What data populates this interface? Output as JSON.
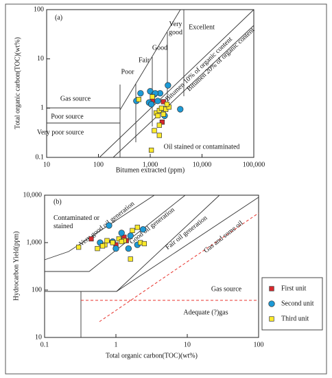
{
  "chart_data": [
    {
      "type": "scatter",
      "panel": "(a)",
      "xlabel": "Bitumen extracted (ppm)",
      "ylabel": "Total organic carbon(TOC)(wt%)",
      "log_x": true,
      "log_y": true,
      "xlim": [
        10,
        100000
      ],
      "ylim": [
        0.1,
        100
      ],
      "xticks": [
        10,
        100,
        {
          "value": 1000,
          "label": "1,000"
        },
        {
          "value": 10000,
          "label": "10,000"
        },
        {
          "value": 100000,
          "label": "100,000"
        }
      ],
      "yticks": [
        0.1,
        1,
        10,
        100
      ],
      "annotations": [
        "Gas source",
        "Poor source",
        "Very poor source",
        "Poor",
        "Fair",
        "Good",
        "Very good",
        "Excellent",
        "Bitumen 10% of organic content",
        "Bitumen 20% of organic content",
        "Oil stained or contaminated"
      ],
      "series": [
        {
          "name": "First unit",
          "color": "#d8282c",
          "marker": "square",
          "x": [
            1800,
            1700,
            1100
          ],
          "values": [
            1.35,
            0.52,
            1.4
          ]
        },
        {
          "name": "Second unit",
          "color": "#1d9ad6",
          "marker": "circle",
          "x": [
            540,
            650,
            1000,
            1200,
            1550,
            2200,
            950,
            1400,
            1900,
            1050,
            1250,
            3800
          ],
          "values": [
            1.4,
            2.0,
            2.2,
            1.9,
            2.0,
            2.9,
            1.3,
            1.4,
            0.7,
            1.2,
            2.0,
            0.95
          ]
        },
        {
          "name": "Third unit",
          "color": "#fcea2b",
          "marker": "square",
          "x": [
            600,
            1100,
            1300,
            1500,
            1400,
            1650,
            1800,
            2000,
            2300,
            1500,
            1200,
            1500,
            1050,
            2100
          ],
          "values": [
            1.5,
            1.7,
            0.8,
            0.9,
            0.7,
            1.0,
            0.75,
            0.95,
            1.05,
            0.45,
            0.35,
            0.28,
            0.14,
            1.2
          ]
        }
      ]
    },
    {
      "type": "scatter",
      "panel": "(b)",
      "xlabel": "Total organic carbon(TOC)(wt%)",
      "ylabel": "Hydrocarbon Yield(ppm)",
      "log_x": true,
      "log_y": true,
      "xlim": [
        0.1,
        100
      ],
      "ylim": [
        10,
        10000
      ],
      "xticks": [
        0.1,
        1,
        10,
        100
      ],
      "yticks": [
        10,
        100,
        {
          "value": 1000,
          "label": "1,000"
        },
        {
          "value": 10000,
          "label": "10,000"
        }
      ],
      "annotations": [
        "Contaminated or stained",
        "Very good oil generation",
        "Good oil generation",
        "Fair oil generation",
        "Gas and some oil",
        "Gas source",
        "Adequate (?)gas"
      ],
      "legend": "right",
      "series": [
        {
          "name": "First unit",
          "color": "#d8282c",
          "marker": "square",
          "x": [
            0.45,
            1.0,
            1.3,
            1.4
          ],
          "values": [
            1200,
            900,
            1300,
            1100
          ]
        },
        {
          "name": "Second unit",
          "color": "#1d9ad6",
          "marker": "circle",
          "x": [
            0.8,
            0.6,
            1.2,
            1.6,
            2.4,
            1.0,
            1.5,
            2.0,
            0.9
          ],
          "values": [
            2300,
            1000,
            1600,
            1400,
            1900,
            750,
            750,
            900,
            1050
          ]
        },
        {
          "name": "Third unit",
          "color": "#fcea2b",
          "marker": "square",
          "x": [
            0.3,
            0.55,
            0.7,
            0.75,
            0.9,
            1.1,
            1.3,
            1.7,
            2.0,
            2.2,
            2.5,
            1.6,
            1.2,
            0.65
          ],
          "values": [
            800,
            750,
            900,
            1100,
            1000,
            1200,
            1100,
            1800,
            2100,
            1000,
            950,
            450,
            1050,
            850
          ]
        }
      ]
    }
  ]
}
